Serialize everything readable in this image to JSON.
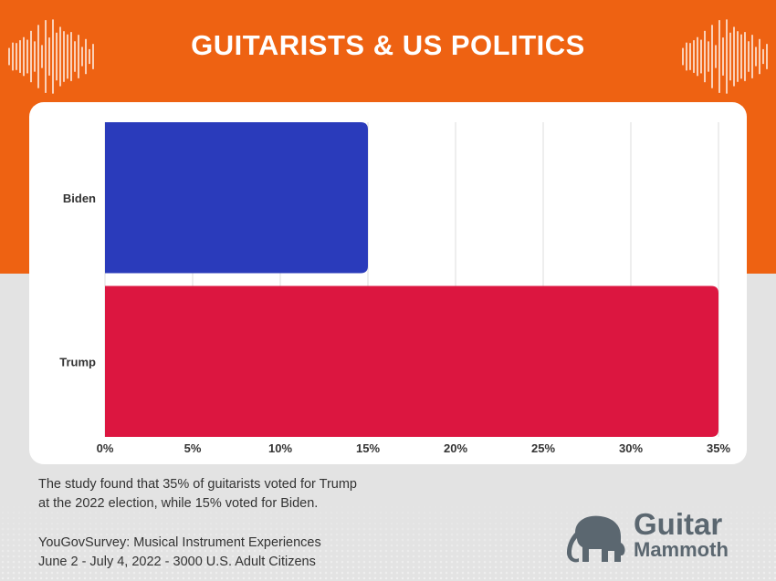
{
  "title": "GUITARISTS & US POLITICS",
  "colors": {
    "brand_orange": "#ee6212",
    "background_gray": "#e3e3e3",
    "biden_bar": "#2a3bbb",
    "trump_bar": "#dc1640",
    "logo_gray": "#5b6770"
  },
  "chart_data": {
    "type": "bar",
    "orientation": "horizontal",
    "categories": [
      "Biden",
      "Trump"
    ],
    "values": [
      15,
      35
    ],
    "x_ticks": [
      "0%",
      "5%",
      "10%",
      "15%",
      "20%",
      "25%",
      "30%",
      "35%"
    ],
    "xlim": [
      0,
      35
    ],
    "grid": true
  },
  "caption": {
    "line1": "The study found that 35% of guitarists voted for Trump",
    "line2": "at the 2022 election, while 15% voted for Biden."
  },
  "source": {
    "line1": "YouGovSurvey: Musical Instrument Experiences",
    "line2": "June 2 - July 4, 2022 - 3000 U.S. Adult Citizens"
  },
  "logo": {
    "word1": "Guitar",
    "word2": "Mammoth",
    "icon": "mammoth-icon"
  },
  "decorations": {
    "left_icon": "sound-wave-icon",
    "right_icon": "sound-wave-icon"
  }
}
